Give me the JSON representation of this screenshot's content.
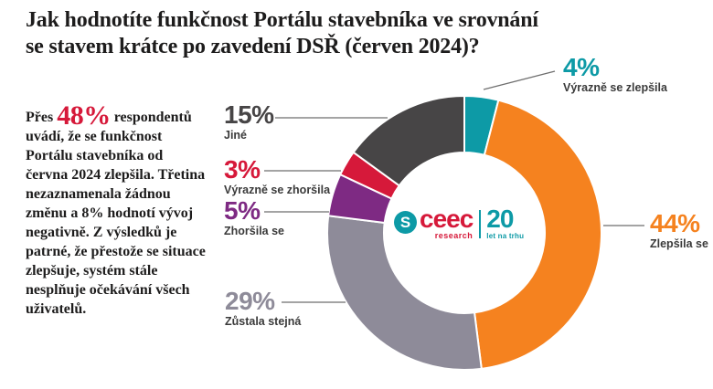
{
  "title": "Jak hodnotíte funkčnost Portálu stavebníka ve srovnání se stavem krátce po zavedení DSŘ (červen 2024)?",
  "summary": {
    "prefix": "Přes ",
    "highlight": "48%",
    "highlight_color": "#d6193a",
    "suffix": " respondentů uvádí, že se funkčnost Portálu stavebníka od června 2024 zlepšila. Třetina nezaznamenala žádnou změnu a 8% hodnotí vývoj negativně. Z výsledků je patrné, že přestože se situace zlepšuje, systém stále nesplňuje očekávání všech uživatelů."
  },
  "logo": {
    "icon": "ceec-monogram-icon",
    "monogram": "S",
    "name": "ceec",
    "sub": "research",
    "years": "20",
    "years_sub": "let na trhu",
    "red": "#d6193a",
    "teal": "#0d9aa6"
  },
  "chart_data": {
    "type": "pie",
    "subtype": "donut",
    "unit": "%",
    "start_angle_deg": 0,
    "direction": "clockwise",
    "legend_position": "callouts",
    "segments": [
      {
        "id": "vyrazne-se-zlepsila",
        "label": "Výrazně se zlepšila",
        "value": 4,
        "pct_label": "4%",
        "color": "#0d9aa6"
      },
      {
        "id": "zlepsila-se",
        "label": "Zlepšila se",
        "value": 44,
        "pct_label": "44%",
        "color": "#f5821f"
      },
      {
        "id": "zustala-stejna",
        "label": "Zůstala stejná",
        "value": 29,
        "pct_label": "29%",
        "color": "#8e8b99"
      },
      {
        "id": "zhorsila-se",
        "label": "Zhoršila se",
        "value": 5,
        "pct_label": "5%",
        "color": "#7e2a83"
      },
      {
        "id": "vyrazne-se-zhorsila",
        "label": "Výrazně se zhoršila",
        "value": 3,
        "pct_label": "3%",
        "color": "#d6193a"
      },
      {
        "id": "jine",
        "label": "Jiné",
        "value": 15,
        "pct_label": "15%",
        "color": "#474546"
      }
    ]
  }
}
